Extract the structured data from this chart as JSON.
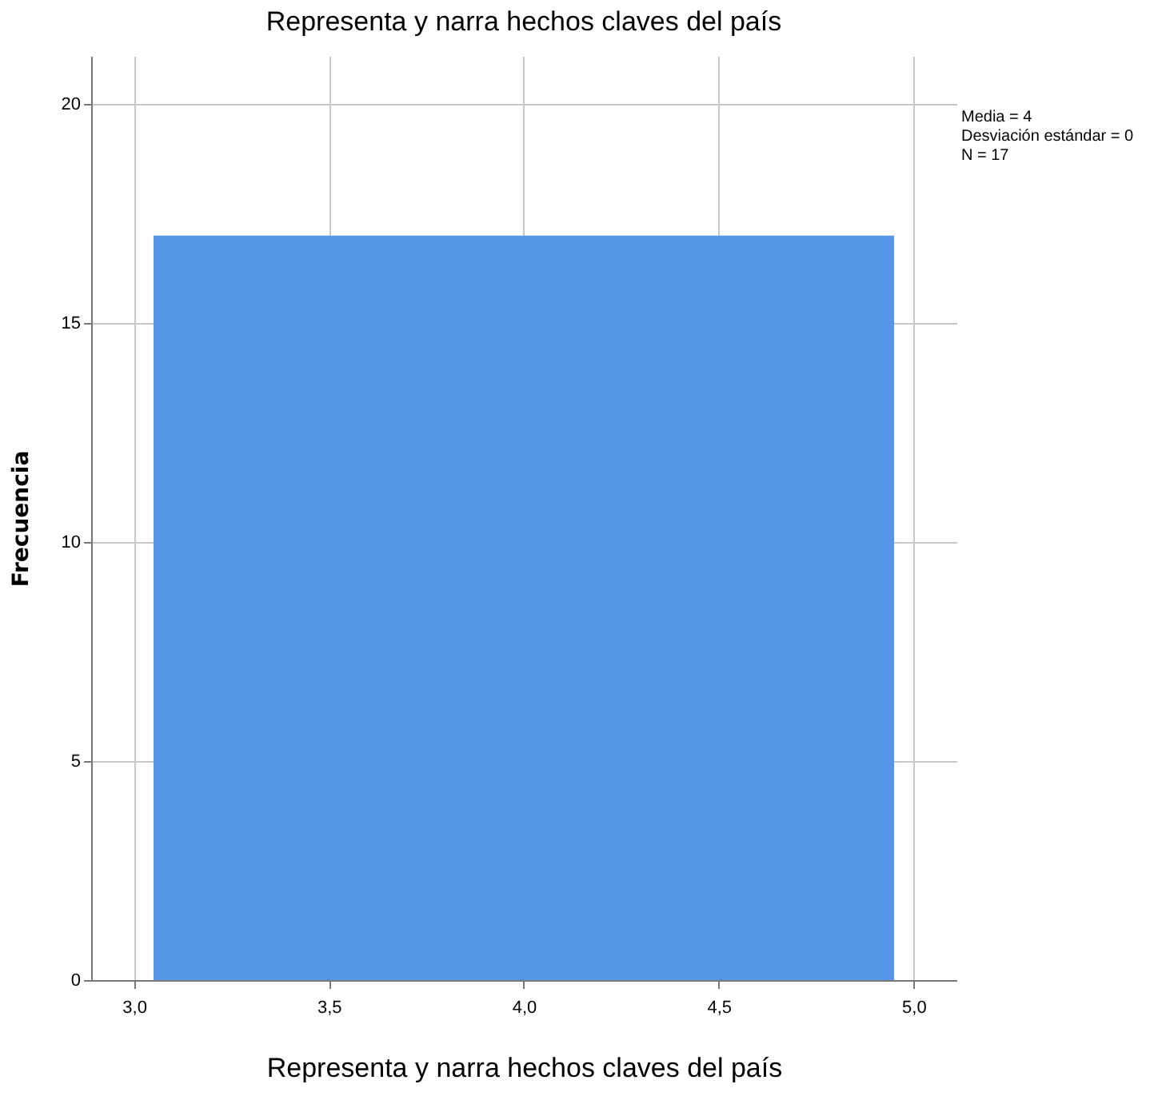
{
  "chart_data": {
    "type": "histogram",
    "title": "Representa y narra hechos claves del país",
    "xlabel": "Representa y narra hechos claves del país",
    "ylabel": "Frecuencia",
    "bins": [
      3.05,
      4.95
    ],
    "values": [
      17
    ],
    "color": "#5596e6",
    "xlim": [
      2.89,
      5.11
    ],
    "xticks": [
      {
        "value": 3,
        "label": "3,0"
      },
      {
        "value": 3.5,
        "label": "3,5"
      },
      {
        "value": 4,
        "label": "4,0"
      },
      {
        "value": 4.5,
        "label": "4,5"
      },
      {
        "value": 5,
        "label": "5,0"
      }
    ],
    "ylim": [
      0,
      21.1
    ],
    "yticks": [
      0,
      5,
      10,
      15,
      20
    ],
    "grid": true,
    "annotations": [
      "Media = 4",
      "Desviación estándar = 0",
      "N = 17"
    ]
  }
}
